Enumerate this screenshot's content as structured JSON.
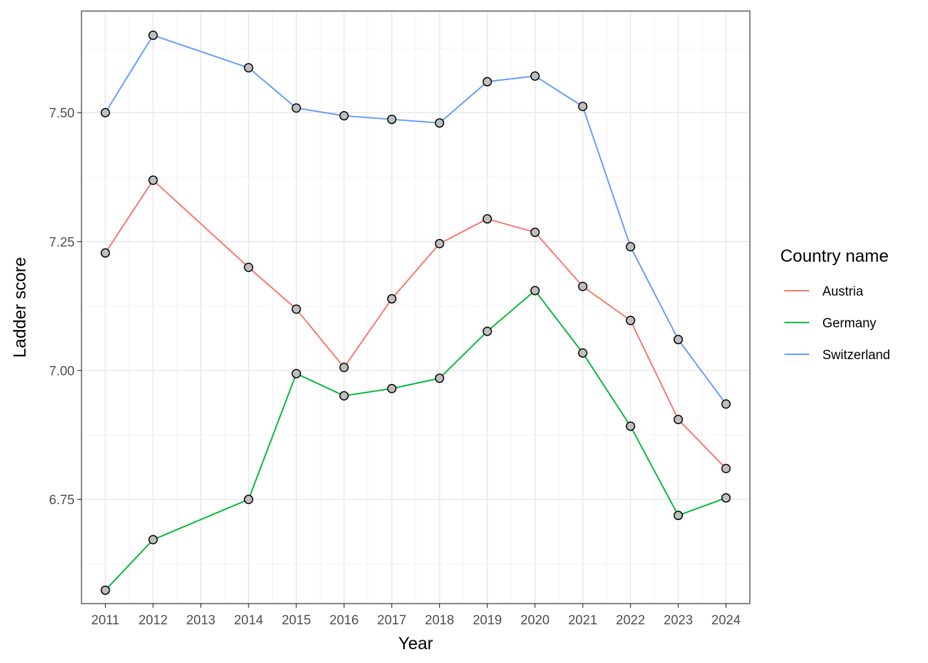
{
  "chart_data": {
    "type": "line",
    "xlabel": "Year",
    "ylabel": "Ladder score",
    "x": [
      2011,
      2012,
      2013,
      2014,
      2015,
      2016,
      2017,
      2018,
      2019,
      2020,
      2021,
      2022,
      2023,
      2024
    ],
    "x_ticks": [
      "2011",
      "2012",
      "2013",
      "2014",
      "2015",
      "2016",
      "2017",
      "2018",
      "2019",
      "2020",
      "2021",
      "2022",
      "2023",
      "2024"
    ],
    "y_ticks": [
      "6.75",
      "7.00",
      "7.25",
      "7.50"
    ],
    "y_tick_values": [
      6.75,
      7.0,
      7.25,
      7.5
    ],
    "ylim": [
      6.548,
      7.697
    ],
    "grid": true,
    "legend": {
      "title": "Country name",
      "position": "right"
    },
    "series": [
      {
        "name": "Austria",
        "color": "#F8766D",
        "points": [
          [
            2011,
            7.228
          ],
          [
            2012,
            7.369
          ],
          [
            2014,
            7.2
          ],
          [
            2015,
            7.119
          ],
          [
            2016,
            7.006
          ],
          [
            2017,
            7.139
          ],
          [
            2018,
            7.246
          ],
          [
            2019,
            7.294
          ],
          [
            2020,
            7.268
          ],
          [
            2021,
            7.163
          ],
          [
            2022,
            7.097
          ],
          [
            2023,
            6.905
          ],
          [
            2024,
            6.81
          ]
        ]
      },
      {
        "name": "Germany",
        "color": "#00BA38",
        "points": [
          [
            2011,
            6.574
          ],
          [
            2012,
            6.672
          ],
          [
            2014,
            6.75
          ],
          [
            2015,
            6.994
          ],
          [
            2016,
            6.951
          ],
          [
            2017,
            6.965
          ],
          [
            2018,
            6.985
          ],
          [
            2019,
            7.076
          ],
          [
            2020,
            7.155
          ],
          [
            2021,
            7.034
          ],
          [
            2022,
            6.892
          ],
          [
            2023,
            6.719
          ],
          [
            2024,
            6.753
          ]
        ]
      },
      {
        "name": "Switzerland",
        "color": "#619CFF",
        "points": [
          [
            2011,
            7.5
          ],
          [
            2012,
            7.65
          ],
          [
            2014,
            7.587
          ],
          [
            2015,
            7.509
          ],
          [
            2016,
            7.494
          ],
          [
            2017,
            7.487
          ],
          [
            2018,
            7.48
          ],
          [
            2019,
            7.56
          ],
          [
            2020,
            7.571
          ],
          [
            2021,
            7.512
          ],
          [
            2022,
            7.24
          ],
          [
            2023,
            7.06
          ],
          [
            2024,
            6.935
          ]
        ]
      }
    ],
    "point_fill": "#BEBEBE",
    "point_stroke": "#000000"
  }
}
